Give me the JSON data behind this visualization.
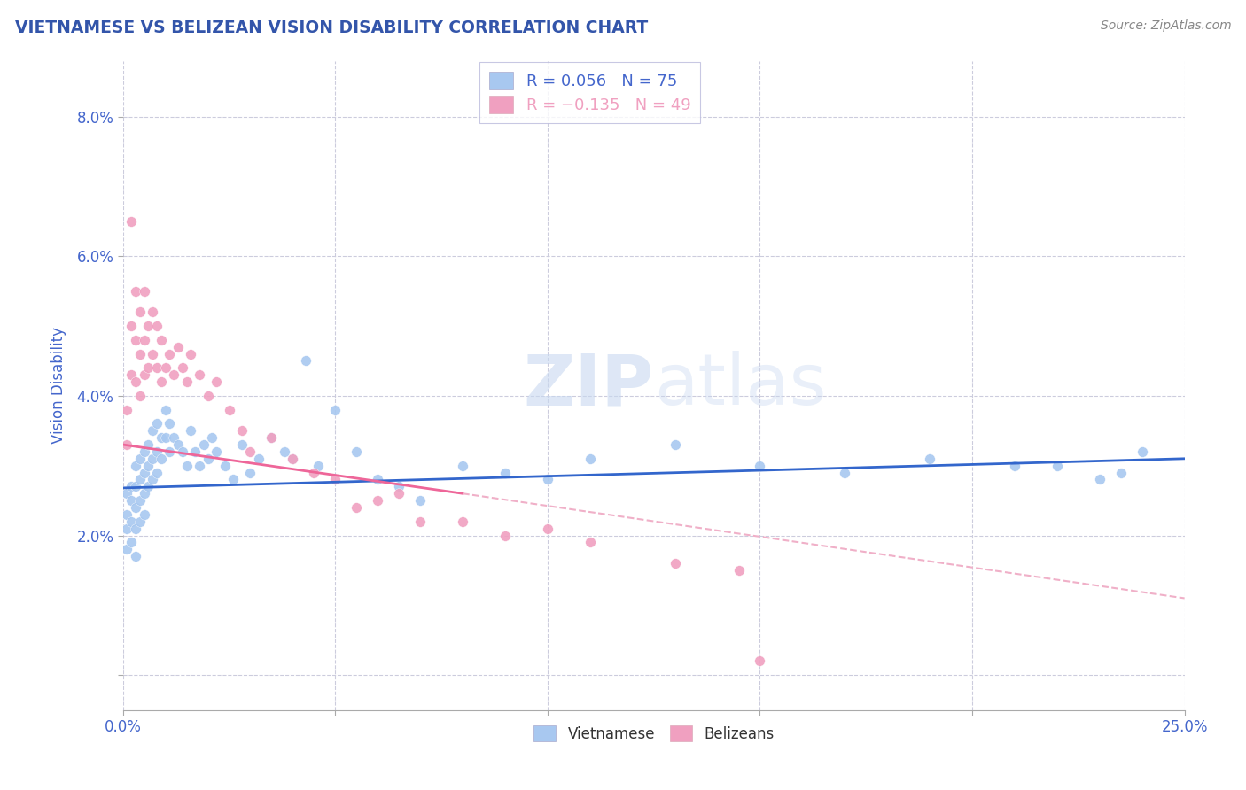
{
  "title": "VIETNAMESE VS BELIZEAN VISION DISABILITY CORRELATION CHART",
  "source": "Source: ZipAtlas.com",
  "ylabel": "Vision Disability",
  "xlim": [
    0.0,
    0.25
  ],
  "ylim": [
    -0.005,
    0.088
  ],
  "xtick_positions": [
    0.0,
    0.05,
    0.1,
    0.15,
    0.2,
    0.25
  ],
  "xtick_labels": [
    "0.0%",
    "",
    "",
    "",
    "",
    "25.0%"
  ],
  "ytick_positions": [
    0.0,
    0.02,
    0.04,
    0.06,
    0.08
  ],
  "ytick_labels": [
    "",
    "2.0%",
    "4.0%",
    "6.0%",
    "8.0%"
  ],
  "title_color": "#3355aa",
  "axis_color": "#4466cc",
  "color_vietnamese": "#a8c8f0",
  "color_belizeans": "#f0a0c0",
  "trend_color_vietnamese": "#3366cc",
  "trend_color_belizeans": "#ee6699",
  "trend_dash_color_belizeans": "#f0b0c8",
  "watermark_zip": "ZIP",
  "watermark_atlas": "atlas",
  "vietnamese_x": [
    0.001,
    0.001,
    0.001,
    0.001,
    0.002,
    0.002,
    0.002,
    0.002,
    0.003,
    0.003,
    0.003,
    0.003,
    0.003,
    0.004,
    0.004,
    0.004,
    0.004,
    0.005,
    0.005,
    0.005,
    0.005,
    0.006,
    0.006,
    0.006,
    0.007,
    0.007,
    0.007,
    0.008,
    0.008,
    0.008,
    0.009,
    0.009,
    0.01,
    0.01,
    0.011,
    0.011,
    0.012,
    0.013,
    0.014,
    0.015,
    0.016,
    0.017,
    0.018,
    0.019,
    0.02,
    0.021,
    0.022,
    0.024,
    0.026,
    0.028,
    0.03,
    0.032,
    0.035,
    0.038,
    0.04,
    0.043,
    0.046,
    0.05,
    0.055,
    0.06,
    0.065,
    0.07,
    0.08,
    0.09,
    0.1,
    0.11,
    0.13,
    0.15,
    0.17,
    0.19,
    0.21,
    0.22,
    0.23,
    0.235,
    0.24
  ],
  "vietnamese_y": [
    0.026,
    0.023,
    0.021,
    0.018,
    0.027,
    0.025,
    0.022,
    0.019,
    0.03,
    0.027,
    0.024,
    0.021,
    0.017,
    0.031,
    0.028,
    0.025,
    0.022,
    0.032,
    0.029,
    0.026,
    0.023,
    0.033,
    0.03,
    0.027,
    0.035,
    0.031,
    0.028,
    0.036,
    0.032,
    0.029,
    0.034,
    0.031,
    0.038,
    0.034,
    0.036,
    0.032,
    0.034,
    0.033,
    0.032,
    0.03,
    0.035,
    0.032,
    0.03,
    0.033,
    0.031,
    0.034,
    0.032,
    0.03,
    0.028,
    0.033,
    0.029,
    0.031,
    0.034,
    0.032,
    0.031,
    0.045,
    0.03,
    0.038,
    0.032,
    0.028,
    0.027,
    0.025,
    0.03,
    0.029,
    0.028,
    0.031,
    0.033,
    0.03,
    0.029,
    0.031,
    0.03,
    0.03,
    0.028,
    0.029,
    0.032
  ],
  "belizean_x": [
    0.001,
    0.001,
    0.002,
    0.002,
    0.003,
    0.003,
    0.003,
    0.004,
    0.004,
    0.004,
    0.005,
    0.005,
    0.005,
    0.006,
    0.006,
    0.007,
    0.007,
    0.008,
    0.008,
    0.009,
    0.009,
    0.01,
    0.011,
    0.012,
    0.013,
    0.014,
    0.015,
    0.016,
    0.018,
    0.02,
    0.022,
    0.025,
    0.028,
    0.03,
    0.035,
    0.04,
    0.045,
    0.05,
    0.055,
    0.06,
    0.065,
    0.07,
    0.08,
    0.09,
    0.1,
    0.11,
    0.13,
    0.145,
    0.15
  ],
  "belizean_y": [
    0.038,
    0.033,
    0.05,
    0.043,
    0.055,
    0.048,
    0.042,
    0.052,
    0.046,
    0.04,
    0.055,
    0.048,
    0.043,
    0.05,
    0.044,
    0.052,
    0.046,
    0.05,
    0.044,
    0.048,
    0.042,
    0.044,
    0.046,
    0.043,
    0.047,
    0.044,
    0.042,
    0.046,
    0.043,
    0.04,
    0.042,
    0.038,
    0.035,
    0.032,
    0.034,
    0.031,
    0.029,
    0.028,
    0.024,
    0.025,
    0.026,
    0.022,
    0.022,
    0.02,
    0.021,
    0.019,
    0.016,
    0.015,
    0.002
  ],
  "belizean_outlier_x": [
    0.002
  ],
  "belizean_outlier_y": [
    0.065
  ],
  "trend_viet_x0": 0.0,
  "trend_viet_y0": 0.0268,
  "trend_viet_x1": 0.25,
  "trend_viet_y1": 0.031,
  "trend_beli_solid_x0": 0.0,
  "trend_beli_solid_y0": 0.033,
  "trend_beli_solid_x1": 0.08,
  "trend_beli_solid_y1": 0.026,
  "trend_beli_dash_x0": 0.08,
  "trend_beli_dash_y0": 0.026,
  "trend_beli_dash_x1": 0.25,
  "trend_beli_dash_y1": 0.011
}
